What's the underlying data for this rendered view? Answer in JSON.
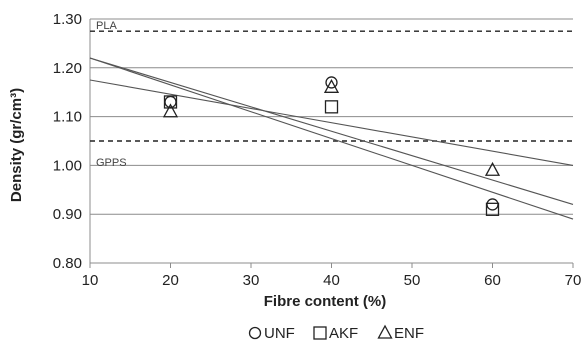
{
  "chart_data": {
    "type": "scatter",
    "xlabel": "Fibre content (%)",
    "ylabel": "Density (gr/cm³)",
    "xlim": [
      10,
      70
    ],
    "ylim": [
      0.8,
      1.3
    ],
    "x_ticks": [
      "10",
      "20",
      "30",
      "40",
      "50",
      "60",
      "70"
    ],
    "y_ticks": [
      "0.80",
      "0.90",
      "1.00",
      "1.10",
      "1.20",
      "1.30"
    ],
    "grid": true,
    "legend_position": "bottom",
    "series": [
      {
        "name": "UNF",
        "marker": "circle",
        "x": [
          20,
          40,
          60
        ],
        "y": [
          1.13,
          1.17,
          0.92
        ]
      },
      {
        "name": "AKF",
        "marker": "square",
        "x": [
          20,
          40,
          60
        ],
        "y": [
          1.13,
          1.12,
          0.91
        ]
      },
      {
        "name": "ENF",
        "marker": "triangle",
        "x": [
          20,
          40,
          60
        ],
        "y": [
          1.11,
          1.16,
          0.99
        ]
      }
    ],
    "trendlines": [
      {
        "x": [
          10,
          70
        ],
        "y": [
          1.22,
          0.89
        ]
      },
      {
        "x": [
          10,
          70
        ],
        "y": [
          1.22,
          0.92
        ]
      },
      {
        "x": [
          10,
          70
        ],
        "y": [
          1.175,
          1.0
        ]
      }
    ],
    "reference_lines": [
      {
        "label": "PLA",
        "y": 1.275
      },
      {
        "label": "GPPS",
        "y": 1.05
      }
    ]
  }
}
